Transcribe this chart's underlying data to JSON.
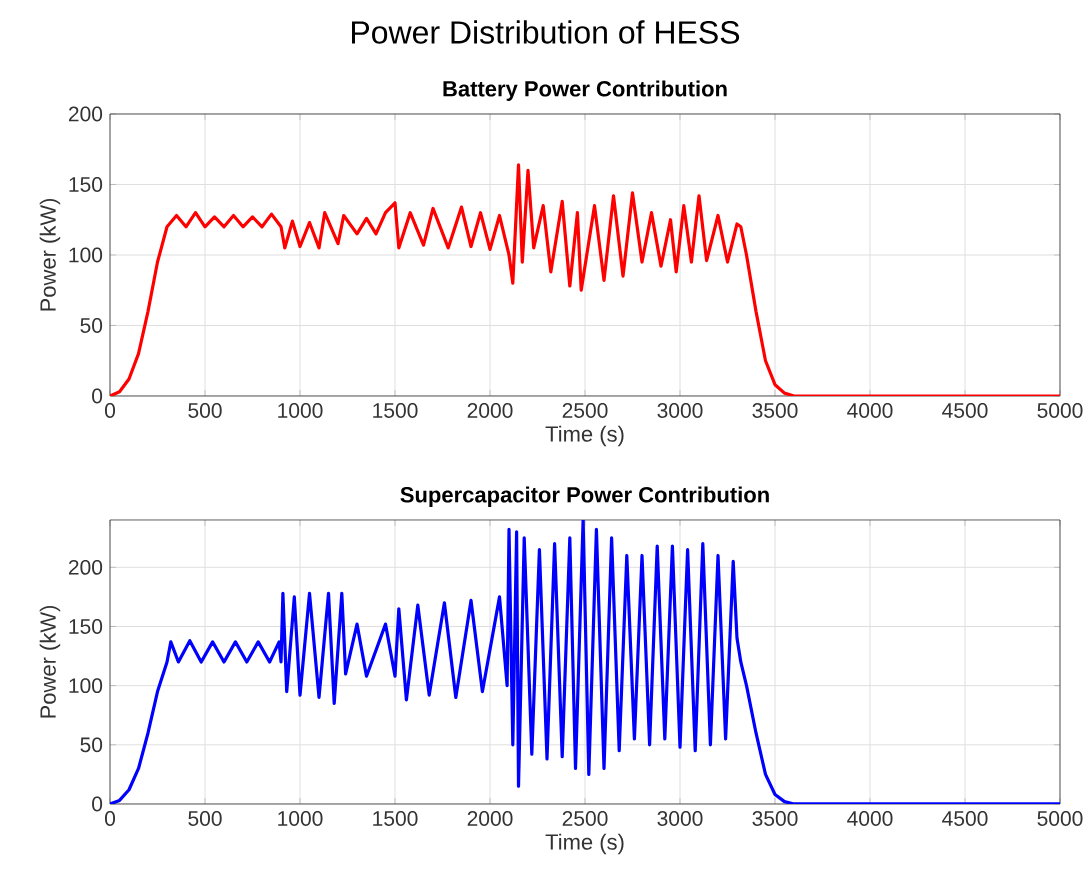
{
  "chart_data": [
    {
      "type": "line",
      "title": "Power Distribution of HESS",
      "subtitle": "Battery Power Contribution",
      "xlabel": "Time (s)",
      "ylabel": "Power (kW)",
      "xlim": [
        0,
        5000
      ],
      "ylim": [
        0,
        200
      ],
      "xticks": [
        0,
        500,
        1000,
        1500,
        2000,
        2500,
        3000,
        3500,
        4000,
        4500,
        5000
      ],
      "yticks": [
        0,
        50,
        100,
        150,
        200
      ],
      "grid": true,
      "line_style": "solid",
      "series": [
        {
          "color": "#ff0000",
          "x": [
            0,
            50,
            100,
            150,
            200,
            250,
            300,
            350,
            400,
            450,
            500,
            550,
            600,
            650,
            700,
            750,
            800,
            850,
            900,
            920,
            960,
            1000,
            1050,
            1100,
            1130,
            1200,
            1230,
            1300,
            1350,
            1400,
            1450,
            1500,
            1520,
            1580,
            1650,
            1700,
            1780,
            1850,
            1900,
            1950,
            2000,
            2050,
            2100,
            2120,
            2150,
            2170,
            2200,
            2230,
            2280,
            2320,
            2380,
            2420,
            2460,
            2480,
            2550,
            2600,
            2650,
            2700,
            2750,
            2800,
            2850,
            2900,
            2950,
            2980,
            3020,
            3060,
            3100,
            3140,
            3200,
            3250,
            3300,
            3320,
            3350,
            3400,
            3450,
            3500,
            3550,
            3600,
            5000
          ],
          "values": [
            0,
            3,
            12,
            30,
            60,
            95,
            120,
            128,
            120,
            130,
            120,
            127,
            120,
            128,
            120,
            127,
            120,
            129,
            120,
            105,
            124,
            106,
            123,
            105,
            130,
            108,
            128,
            115,
            126,
            115,
            130,
            137,
            105,
            130,
            107,
            133,
            105,
            134,
            106,
            130,
            104,
            128,
            100,
            80,
            164,
            95,
            160,
            105,
            135,
            88,
            138,
            78,
            130,
            75,
            135,
            82,
            142,
            85,
            144,
            95,
            130,
            92,
            125,
            88,
            135,
            95,
            142,
            96,
            128,
            95,
            122,
            120,
            100,
            60,
            25,
            8,
            2,
            0,
            0
          ]
        }
      ]
    },
    {
      "type": "line",
      "title": "Supercapacitor Power Contribution",
      "xlabel": "Time (s)",
      "ylabel": "Power (kW)",
      "xlim": [
        0,
        5000
      ],
      "ylim": [
        0,
        240
      ],
      "xticks": [
        0,
        500,
        1000,
        1500,
        2000,
        2500,
        3000,
        3500,
        4000,
        4500,
        5000
      ],
      "yticks": [
        0,
        50,
        100,
        150,
        200
      ],
      "grid": true,
      "line_style": "solid",
      "series": [
        {
          "color": "#0000ff",
          "x": [
            0,
            50,
            100,
            150,
            200,
            250,
            300,
            320,
            360,
            420,
            480,
            540,
            600,
            660,
            720,
            780,
            840,
            890,
            900,
            910,
            930,
            970,
            1000,
            1050,
            1100,
            1150,
            1180,
            1220,
            1240,
            1300,
            1350,
            1450,
            1500,
            1520,
            1560,
            1620,
            1680,
            1760,
            1820,
            1900,
            1960,
            2050,
            2090,
            2100,
            2120,
            2140,
            2150,
            2180,
            2220,
            2260,
            2300,
            2340,
            2380,
            2420,
            2450,
            2490,
            2520,
            2560,
            2600,
            2640,
            2680,
            2720,
            2760,
            2800,
            2840,
            2880,
            2920,
            2960,
            3000,
            3040,
            3080,
            3120,
            3160,
            3200,
            3240,
            3280,
            3300,
            3320,
            3350,
            3400,
            3450,
            3500,
            3550,
            3600,
            5000
          ],
          "values": [
            0,
            3,
            12,
            30,
            60,
            95,
            120,
            137,
            120,
            138,
            120,
            137,
            120,
            137,
            120,
            137,
            120,
            137,
            120,
            178,
            95,
            175,
            92,
            178,
            90,
            178,
            85,
            178,
            110,
            152,
            108,
            152,
            108,
            165,
            88,
            168,
            92,
            170,
            90,
            172,
            95,
            175,
            100,
            232,
            50,
            230,
            15,
            225,
            42,
            215,
            38,
            220,
            40,
            225,
            30,
            240,
            25,
            232,
            30,
            225,
            45,
            210,
            55,
            210,
            50,
            218,
            55,
            218,
            48,
            215,
            45,
            220,
            50,
            210,
            55,
            205,
            140,
            120,
            100,
            60,
            25,
            8,
            2,
            0,
            0
          ]
        }
      ]
    }
  ]
}
